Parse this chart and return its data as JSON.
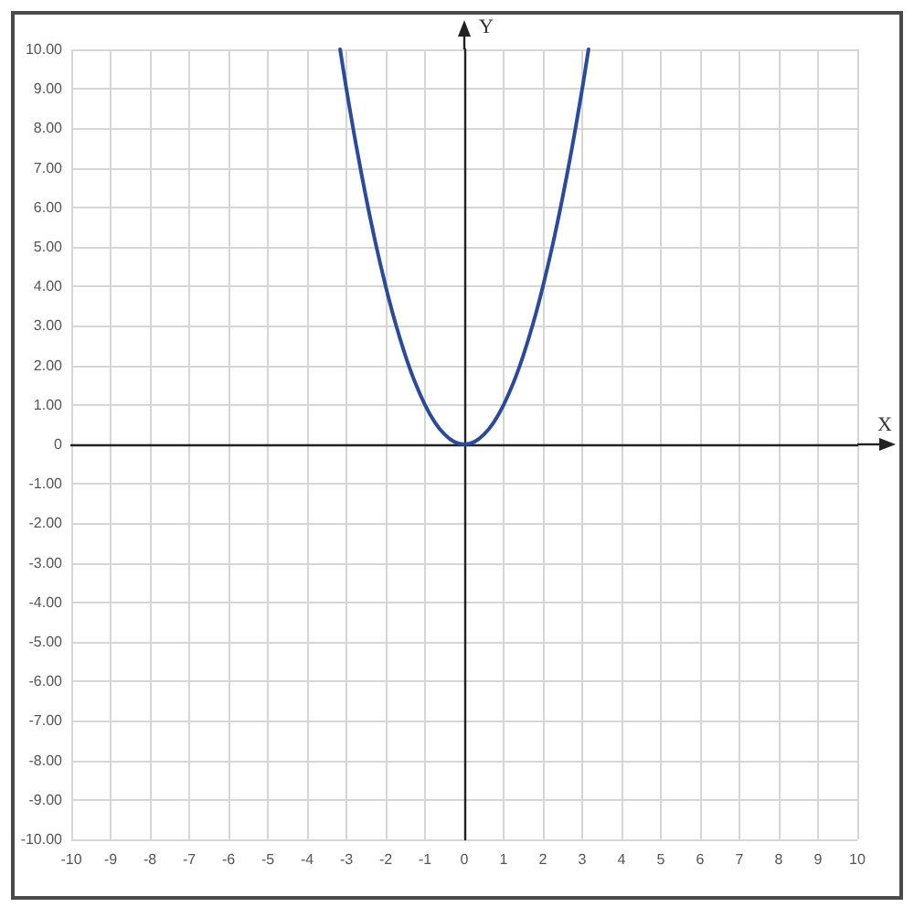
{
  "chart_data": {
    "type": "line",
    "xlabel": "X",
    "ylabel": "Y",
    "x": [
      -3.16,
      -3,
      -2.75,
      -2.5,
      -2.25,
      -2,
      -1.75,
      -1.5,
      -1.25,
      -1,
      -0.75,
      -0.5,
      -0.25,
      0,
      0.25,
      0.5,
      0.75,
      1,
      1.25,
      1.5,
      1.75,
      2,
      2.25,
      2.5,
      2.75,
      3,
      3.16
    ],
    "values": [
      10,
      9,
      7.56,
      6.25,
      5.06,
      4,
      3.06,
      2.25,
      1.56,
      1,
      0.56,
      0.25,
      0.06,
      0,
      0.06,
      0.25,
      0.56,
      1,
      1.56,
      2.25,
      3.06,
      4,
      5.06,
      6.25,
      7.56,
      9,
      10
    ],
    "color": "#2a4b9b",
    "marker": "none",
    "xlim": [
      -10,
      10
    ],
    "ylim": [
      -10,
      10
    ],
    "xticks": [
      -10,
      -9,
      -8,
      -7,
      -6,
      -5,
      -4,
      -3,
      -2,
      -1,
      0,
      1,
      2,
      3,
      4,
      5,
      6,
      7,
      8,
      9,
      10
    ],
    "yticks": [
      {
        "value": -10,
        "label": "-10.00"
      },
      {
        "value": -9,
        "label": "-9.00"
      },
      {
        "value": -8,
        "label": "-8.00"
      },
      {
        "value": -7,
        "label": "-7.00"
      },
      {
        "value": -6,
        "label": "-6.00"
      },
      {
        "value": -5,
        "label": "-5.00"
      },
      {
        "value": -4,
        "label": "-4.00"
      },
      {
        "value": -3,
        "label": "-3.00"
      },
      {
        "value": -2,
        "label": "-2.00"
      },
      {
        "value": -1,
        "label": "-1.00"
      },
      0,
      {
        "value": 1,
        "label": "1.00"
      },
      {
        "value": 2,
        "label": "2.00"
      },
      {
        "value": 3,
        "label": "3.00"
      },
      {
        "value": 4,
        "label": "4.00"
      },
      {
        "value": 5,
        "label": "5.00"
      },
      {
        "value": 6,
        "label": "6.00"
      },
      {
        "value": 7,
        "label": "7.00"
      },
      {
        "value": 8,
        "label": "8.00"
      },
      {
        "value": 9,
        "label": "9.00"
      },
      {
        "value": 10,
        "label": "10.00"
      }
    ],
    "grid": true
  }
}
